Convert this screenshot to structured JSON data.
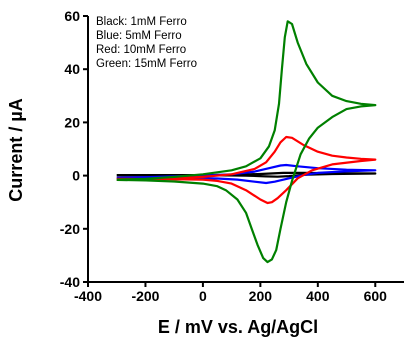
{
  "chart_data": {
    "type": "line",
    "title": "",
    "xlabel": "E / mV  vs.  Ag/AgCl",
    "ylabel": "Current / µA",
    "xlim": [
      -400,
      700
    ],
    "ylim": [
      -40,
      60
    ],
    "x_ticks": [
      -400,
      -200,
      0,
      200,
      400,
      600
    ],
    "y_ticks": [
      -40,
      -20,
      0,
      20,
      40,
      60
    ],
    "grid": false,
    "legend_placement": "top-left",
    "legend": [
      "Black:  1mM Ferro",
      "Blue:  5mM  Ferro",
      "Red:  10mM Ferro",
      "Green:  15mM Ferro"
    ],
    "series": [
      {
        "name": "Black: 1mM Ferro",
        "color": "#000000",
        "points": [
          [
            -300,
            0.2
          ],
          [
            -200,
            0.2
          ],
          [
            -100,
            0.2
          ],
          [
            0,
            0.2
          ],
          [
            100,
            0.3
          ],
          [
            200,
            0.6
          ],
          [
            280,
            1.0
          ],
          [
            350,
            1.0
          ],
          [
            450,
            0.9
          ],
          [
            600,
            0.8
          ],
          [
            450,
            0.6
          ],
          [
            350,
            0.3
          ],
          [
            300,
            -0.2
          ],
          [
            260,
            -0.4
          ],
          [
            220,
            -0.3
          ],
          [
            150,
            0
          ],
          [
            50,
            0.1
          ],
          [
            -100,
            0.1
          ],
          [
            -300,
            0.1
          ]
        ]
      },
      {
        "name": "Blue: 5mM Ferro",
        "color": "#0000ff",
        "points": [
          [
            -300,
            -0.8
          ],
          [
            -200,
            -0.6
          ],
          [
            -100,
            -0.3
          ],
          [
            0,
            0
          ],
          [
            100,
            0.5
          ],
          [
            180,
            1.5
          ],
          [
            230,
            2.8
          ],
          [
            270,
            3.8
          ],
          [
            290,
            4.0
          ],
          [
            330,
            3.5
          ],
          [
            400,
            2.8
          ],
          [
            500,
            2.2
          ],
          [
            600,
            2.0
          ],
          [
            500,
            1.6
          ],
          [
            400,
            1.0
          ],
          [
            350,
            0.2
          ],
          [
            300,
            -1.0
          ],
          [
            250,
            -2.3
          ],
          [
            220,
            -2.8
          ],
          [
            180,
            -2.3
          ],
          [
            120,
            -1.5
          ],
          [
            50,
            -1.1
          ],
          [
            -50,
            -0.9
          ],
          [
            -300,
            -0.8
          ]
        ]
      },
      {
        "name": "Red: 10mM Ferro",
        "color": "#ff0000",
        "points": [
          [
            -300,
            -1.5
          ],
          [
            -200,
            -1.3
          ],
          [
            -100,
            -1.0
          ],
          [
            0,
            -0.5
          ],
          [
            100,
            0.5
          ],
          [
            180,
            2.5
          ],
          [
            220,
            5.0
          ],
          [
            250,
            9.0
          ],
          [
            270,
            12.5
          ],
          [
            290,
            14.5
          ],
          [
            310,
            14.2
          ],
          [
            350,
            11.5
          ],
          [
            400,
            9.0
          ],
          [
            450,
            7.5
          ],
          [
            500,
            6.8
          ],
          [
            550,
            6.3
          ],
          [
            600,
            6.0
          ],
          [
            550,
            5.5
          ],
          [
            450,
            4.2
          ],
          [
            380,
            2.0
          ],
          [
            330,
            -1.0
          ],
          [
            290,
            -5.5
          ],
          [
            260,
            -8.5
          ],
          [
            240,
            -10.0
          ],
          [
            225,
            -10.3
          ],
          [
            200,
            -9.0
          ],
          [
            150,
            -5.5
          ],
          [
            100,
            -3.0
          ],
          [
            50,
            -2.0
          ],
          [
            0,
            -1.5
          ],
          [
            -100,
            -1.4
          ],
          [
            -300,
            -1.2
          ]
        ]
      },
      {
        "name": "Green: 15mM Ferro",
        "color": "#008000",
        "points": [
          [
            -300,
            -1.5
          ],
          [
            -200,
            -1.2
          ],
          [
            -100,
            -0.5
          ],
          [
            0,
            0.5
          ],
          [
            100,
            2.0
          ],
          [
            150,
            3.5
          ],
          [
            200,
            6.5
          ],
          [
            230,
            11.0
          ],
          [
            250,
            17.0
          ],
          [
            265,
            27.0
          ],
          [
            275,
            40.0
          ],
          [
            285,
            52.0
          ],
          [
            295,
            58.0
          ],
          [
            310,
            57.0
          ],
          [
            330,
            50.0
          ],
          [
            360,
            42.0
          ],
          [
            400,
            35.0
          ],
          [
            450,
            30.0
          ],
          [
            500,
            28.0
          ],
          [
            550,
            27.0
          ],
          [
            600,
            26.5
          ],
          [
            550,
            26.0
          ],
          [
            500,
            25.0
          ],
          [
            450,
            22.0
          ],
          [
            400,
            18.0
          ],
          [
            370,
            14.0
          ],
          [
            340,
            8.0
          ],
          [
            310,
            -2.0
          ],
          [
            290,
            -10.0
          ],
          [
            270,
            -20.0
          ],
          [
            255,
            -28.0
          ],
          [
            240,
            -31.5
          ],
          [
            225,
            -32.5
          ],
          [
            210,
            -31.0
          ],
          [
            190,
            -26.0
          ],
          [
            170,
            -20.0
          ],
          [
            150,
            -14.0
          ],
          [
            120,
            -9.0
          ],
          [
            80,
            -5.5
          ],
          [
            50,
            -4.0
          ],
          [
            0,
            -3.0
          ],
          [
            -100,
            -2.2
          ],
          [
            -200,
            -1.8
          ],
          [
            -300,
            -1.6
          ]
        ]
      }
    ]
  }
}
